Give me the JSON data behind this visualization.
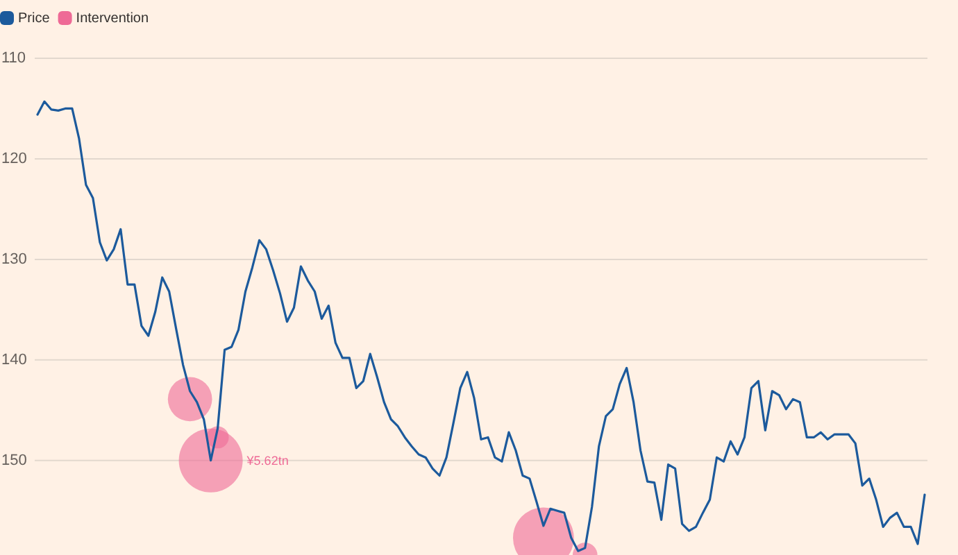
{
  "chart_data": {
    "type": "line",
    "categories": [
      null,
      null,
      null,
      null,
      null,
      null,
      null,
      null,
      null,
      null,
      null,
      null,
      null,
      null,
      null,
      null,
      null,
      null,
      null,
      null,
      null,
      null,
      null,
      null,
      null,
      null,
      null,
      null,
      null,
      null,
      null,
      null,
      null,
      null,
      null,
      null,
      null,
      null,
      null,
      null,
      null,
      null,
      null,
      null,
      null,
      null,
      null,
      null,
      null,
      null,
      null,
      null,
      null,
      null,
      null,
      null,
      null,
      null,
      null,
      null,
      null,
      null,
      null,
      null,
      null,
      null,
      null,
      null,
      null,
      null,
      null,
      null,
      null,
      null,
      null,
      null,
      null,
      null,
      null,
      null,
      null,
      null,
      null,
      null,
      null,
      null,
      null,
      null,
      null,
      null,
      null,
      null,
      null,
      null,
      null,
      null,
      null,
      null,
      null,
      null,
      null,
      null,
      null,
      null,
      null,
      null,
      null,
      null,
      null,
      null,
      null,
      null,
      null,
      null,
      null,
      null,
      null,
      null,
      null,
      null,
      null,
      null,
      null,
      null,
      null,
      null,
      null,
      null,
      null
    ],
    "series": [
      {
        "name": "Price",
        "color": "#1c5a9c",
        "values": [
          115.6,
          114.3,
          115.1,
          115.2,
          115.0,
          115.0,
          118.0,
          122.6,
          123.9,
          128.3,
          130.1,
          129.0,
          127.0,
          132.5,
          132.5,
          136.6,
          137.6,
          135.2,
          131.8,
          133.2,
          136.9,
          140.5,
          143.1,
          144.2,
          145.9,
          150.0,
          146.8,
          139.0,
          138.7,
          137.0,
          133.2,
          130.8,
          128.1,
          129.0,
          131.1,
          133.4,
          136.2,
          134.8,
          130.7,
          132.1,
          133.2,
          135.9,
          134.6,
          138.3,
          139.8,
          139.8,
          142.8,
          142.1,
          139.4,
          141.7,
          144.2,
          145.9,
          146.6,
          147.7,
          148.6,
          149.4,
          149.7,
          150.8,
          151.5,
          149.7,
          146.3,
          142.8,
          141.2,
          143.8,
          147.9,
          147.7,
          149.7,
          150.1,
          147.2,
          149.0,
          151.5,
          151.8,
          154.1,
          156.5,
          154.8,
          155.0,
          155.2,
          157.7,
          159.0,
          158.7,
          154.6,
          148.6,
          145.6,
          144.9,
          142.4,
          140.8,
          144.2,
          149.0,
          152.1,
          152.2,
          155.9,
          150.4,
          150.8,
          156.3,
          157.0,
          156.6,
          155.2,
          153.9,
          149.7,
          150.1,
          148.1,
          149.4,
          147.7,
          142.8,
          142.1,
          147.0,
          143.1,
          143.5,
          144.9,
          143.9,
          144.2,
          147.7,
          147.7,
          147.2,
          147.9,
          147.4,
          147.4,
          147.4,
          148.3,
          152.5,
          151.8,
          153.9,
          156.6,
          155.7,
          155.2,
          156.6,
          156.6,
          158.3,
          153.4
        ]
      },
      {
        "name": "Intervention",
        "type": "bubble",
        "color": "#ee6a96",
        "values": [
          null,
          null,
          null,
          null,
          null,
          null,
          null,
          null,
          null,
          null,
          null,
          null,
          null,
          null,
          null,
          null,
          null,
          null,
          null,
          null,
          null,
          null,
          143.9,
          null,
          null,
          150.0,
          147.7,
          null,
          null,
          null,
          null,
          null,
          null,
          null,
          null,
          null,
          null,
          null,
          null,
          null,
          null,
          null,
          null,
          null,
          null,
          null,
          null,
          null,
          null,
          null,
          null,
          null,
          null,
          null,
          null,
          null,
          null,
          null,
          null,
          null,
          null,
          null,
          null,
          null,
          null,
          null,
          null,
          null,
          null,
          null,
          null,
          null,
          null,
          157.7,
          null,
          null,
          null,
          null,
          null,
          159.4,
          null,
          null,
          null,
          null,
          null,
          null,
          null,
          null,
          null,
          null,
          null,
          null,
          null,
          null,
          null,
          null,
          null,
          null,
          null,
          null,
          null,
          null,
          null,
          null,
          null,
          null,
          null,
          null,
          null,
          null,
          null,
          null,
          null,
          null,
          null,
          null,
          null,
          null,
          null,
          null,
          null,
          null,
          null,
          null,
          null,
          null,
          null,
          null,
          null
        ],
        "sizes": [
          null,
          null,
          null,
          null,
          null,
          null,
          null,
          null,
          null,
          null,
          null,
          null,
          null,
          null,
          null,
          null,
          null,
          null,
          null,
          null,
          null,
          null,
          0.48,
          null,
          null,
          1,
          0.12,
          null,
          null,
          null,
          null,
          null,
          null,
          null,
          null,
          null,
          null,
          null,
          null,
          null,
          null,
          null,
          null,
          null,
          null,
          null,
          null,
          null,
          null,
          null,
          null,
          null,
          null,
          null,
          null,
          null,
          null,
          null,
          null,
          null,
          null,
          null,
          null,
          null,
          null,
          null,
          null,
          null,
          null,
          null,
          null,
          null,
          null,
          0.91,
          null,
          null,
          null,
          null,
          null,
          0.15,
          null,
          null,
          null,
          null,
          null,
          null,
          null,
          null,
          null,
          null,
          null,
          null,
          null,
          null,
          null,
          null,
          null,
          null,
          null,
          null,
          null,
          null,
          null,
          null,
          null,
          null,
          null,
          null,
          null,
          null,
          null,
          null,
          null,
          null,
          null,
          null,
          null,
          null,
          null,
          null,
          null,
          null,
          null,
          null,
          null,
          null,
          null,
          null,
          null
        ]
      }
    ],
    "annotations": [
      "¥5.62tn"
    ],
    "ylim": [
      159.4,
      110
    ],
    "yticks": [
      110,
      120,
      130,
      140,
      150
    ],
    "grid": "y",
    "legend": "top left",
    "tick_labels": "y"
  }
}
